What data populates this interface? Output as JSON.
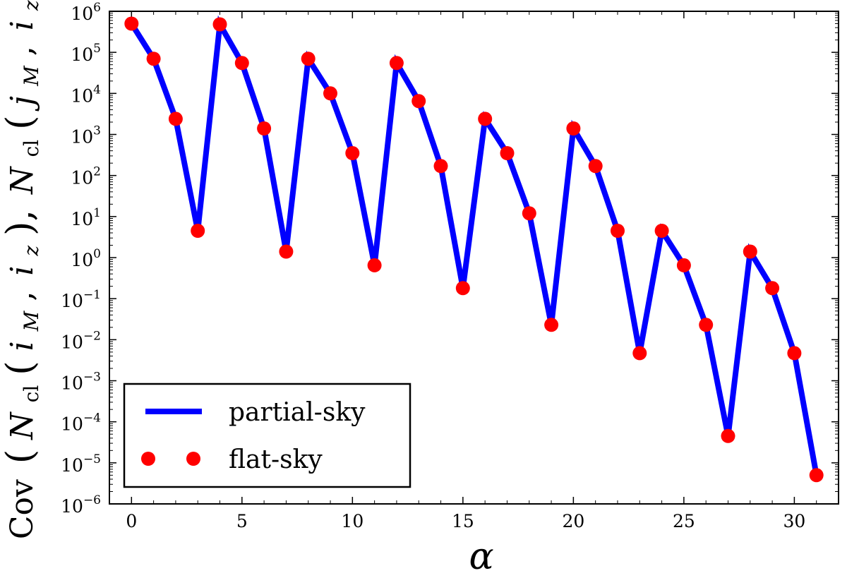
{
  "chart_data": {
    "type": "line",
    "x": [
      0,
      1,
      2,
      3,
      4,
      5,
      6,
      7,
      8,
      9,
      10,
      11,
      12,
      13,
      14,
      15,
      16,
      17,
      18,
      19,
      20,
      21,
      22,
      23,
      24,
      25,
      26,
      27,
      28,
      29,
      30,
      31
    ],
    "series": [
      {
        "name": "partial-sky",
        "style": "line",
        "color": "#0000ff",
        "values": [
          500000.0,
          70000.0,
          2400.0,
          4.5,
          480000.0,
          55000.0,
          1400.0,
          1.4,
          70000.0,
          10000.0,
          350,
          0.65,
          55000.0,
          6500.0,
          170,
          0.18,
          2400.0,
          350,
          12,
          0.023,
          1400.0,
          170,
          4.5,
          0.0047,
          4.5,
          0.65,
          0.023,
          4.5e-05,
          1.4,
          0.18,
          0.0047,
          5e-06
        ]
      },
      {
        "name": "flat-sky",
        "style": "markers",
        "color": "#ff0000",
        "values": [
          500000.0,
          70000.0,
          2400.0,
          4.5,
          480000.0,
          55000.0,
          1400.0,
          1.4,
          70000.0,
          10000.0,
          350,
          0.65,
          55000.0,
          6500.0,
          170,
          0.18,
          2400.0,
          350,
          12,
          0.023,
          1400.0,
          170,
          4.5,
          0.0047,
          4.5,
          0.65,
          0.023,
          4.5e-05,
          1.4,
          0.18,
          0.0047,
          5e-06
        ]
      }
    ],
    "xlabel": "α",
    "ylabel_parts": {
      "cov": "Cov",
      "open": "(",
      "n": "N",
      "cl": "cl",
      "i": "i",
      "j": "j",
      "M": "M",
      "z": "z",
      "comma": ","
    },
    "xlim": [
      -1,
      32
    ],
    "ylim": [
      1e-06,
      1000000.0
    ],
    "yscale": "log",
    "xticks": [
      0,
      5,
      10,
      15,
      20,
      25,
      30
    ],
    "xtick_labels": [
      "0",
      "5",
      "10",
      "15",
      "20",
      "25",
      "30"
    ],
    "yticks_exp": [
      -6,
      -5,
      -4,
      -3,
      -2,
      -1,
      0,
      1,
      2,
      3,
      4,
      5,
      6
    ],
    "ytick_base": "10",
    "ytick_exp_labels": [
      "−6",
      "−5",
      "−4",
      "−3",
      "−2",
      "−1",
      "0",
      "1",
      "2",
      "3",
      "4",
      "5",
      "6"
    ],
    "legend_position": "lower-left",
    "grid": false
  }
}
